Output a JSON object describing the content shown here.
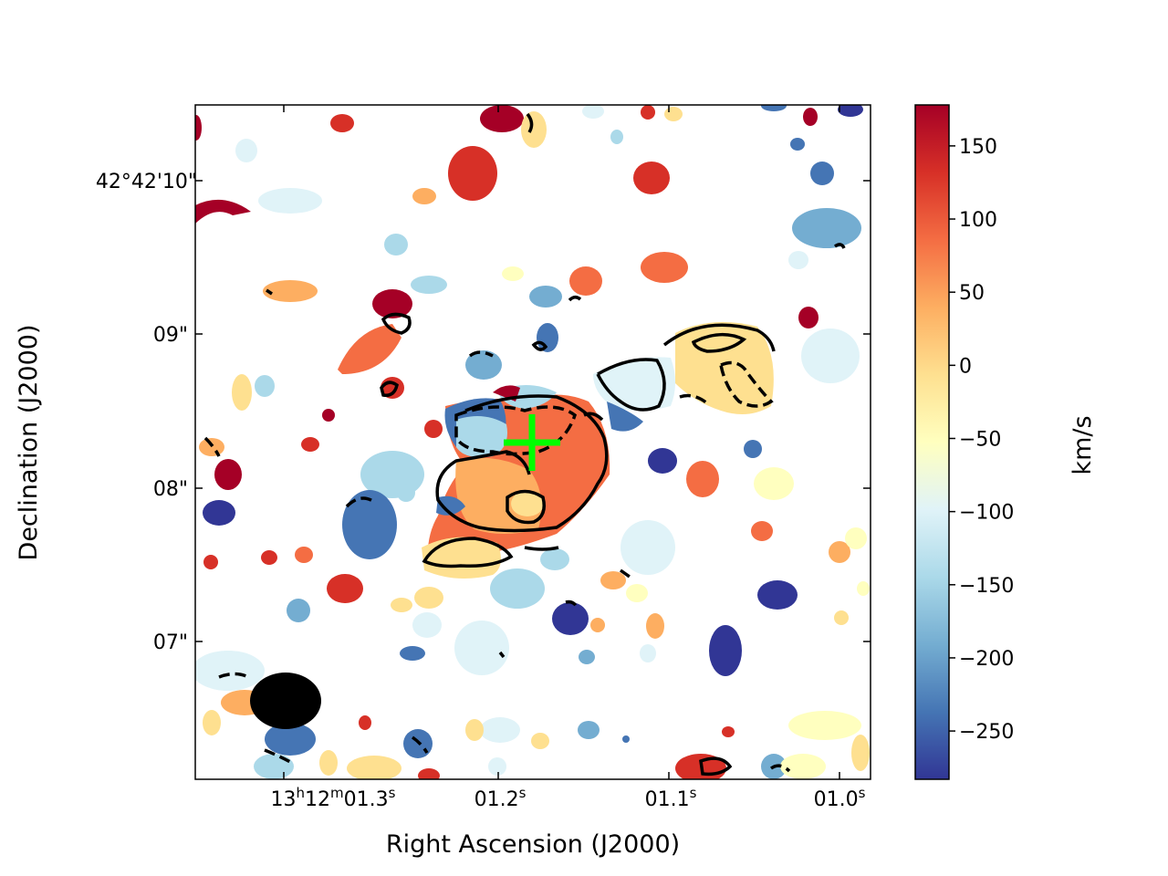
{
  "chart_data": {
    "type": "heatmap",
    "title": "",
    "xlabel": "Right Ascension (J2000)",
    "ylabel": "Declination (J2000)",
    "x_ticks": [
      {
        "base": "13",
        "sup1": "h",
        "mid": "12",
        "sup2": "m",
        "main": "01.3",
        "sup3": "s"
      },
      {
        "main": "01.2",
        "sup3": "s"
      },
      {
        "main": "01.1",
        "sup3": "s"
      },
      {
        "main": "01.0",
        "sup3": "s"
      }
    ],
    "y_ticks": [
      "07\"",
      "08\"",
      "09\"",
      "42°42'10\""
    ],
    "colorbar": {
      "label": "km/s",
      "colormap": "RdYlBu_r",
      "vmin": -283,
      "vmax": 178,
      "ticks": [
        "150",
        "100",
        "50",
        "0",
        "−50",
        "−100",
        "−150",
        "−200",
        "−250"
      ],
      "tick_values": [
        150,
        100,
        50,
        0,
        -50,
        -100,
        -150,
        -200,
        -250
      ],
      "colors": [
        "#313695",
        "#4575b4",
        "#74add1",
        "#abd9e9",
        "#e0f3f8",
        "#ffffbf",
        "#fee090",
        "#fdae61",
        "#f46d43",
        "#d73027",
        "#a50026"
      ]
    },
    "markers": [
      {
        "type": "cross",
        "color": "#00ff00"
      }
    ],
    "beam": {
      "color": "#000000"
    },
    "grid": false
  }
}
